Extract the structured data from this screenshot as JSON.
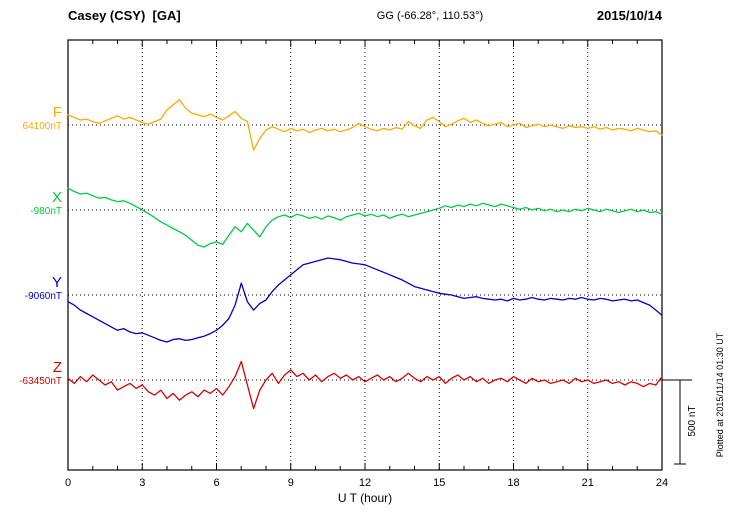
{
  "header": {
    "station": "Casey (CSY)  [GA]",
    "coords": "GG (-66.28°, 110.53°)",
    "date": "2015/10/14"
  },
  "axis": {
    "xlabel": "U T (hour)"
  },
  "side": {
    "scale_label": "500 nT",
    "plotted_at": "Plotted at 2015/11/14 01:30 UT"
  },
  "chart_data": {
    "type": "line",
    "title": "Casey (CSY) [GA] magnetogram 2015/10/14",
    "xlabel": "U T (hour)",
    "ylabel": "",
    "x_range": [
      0,
      24
    ],
    "x_ticks": [
      0,
      3,
      6,
      9,
      12,
      15,
      18,
      21,
      24
    ],
    "x_step_hours": 0.25,
    "scale_bar_nT": 500,
    "grid": "dotted",
    "series": [
      {
        "name": "F",
        "baseline_label": "64100nT",
        "baseline_nT": 64100,
        "color": "#FFAA00",
        "offsets_nT": [
          60,
          45,
          30,
          35,
          20,
          10,
          25,
          40,
          55,
          35,
          45,
          30,
          15,
          5,
          20,
          35,
          90,
          120,
          150,
          100,
          70,
          60,
          50,
          65,
          45,
          30,
          55,
          80,
          40,
          20,
          -150,
          -80,
          -30,
          -10,
          -25,
          -40,
          -20,
          -35,
          -25,
          -45,
          -30,
          -20,
          -35,
          -25,
          -40,
          -30,
          -15,
          10,
          -10,
          -25,
          -35,
          -20,
          -30,
          -15,
          -25,
          20,
          -5,
          -20,
          30,
          45,
          20,
          -10,
          5,
          25,
          40,
          15,
          30,
          10,
          -5,
          5,
          15,
          -10,
          0,
          10,
          -15,
          -5,
          5,
          -10,
          0,
          -10,
          -20,
          -5,
          -15,
          -10,
          -20,
          -10,
          -25,
          -15,
          -30,
          -20,
          -25,
          -35,
          -20,
          -30,
          -40,
          -35,
          -60
        ]
      },
      {
        "name": "X",
        "baseline_label": "-980nT",
        "baseline_nT": -980,
        "color": "#00CC44",
        "offsets_nT": [
          130,
          110,
          95,
          100,
          85,
          70,
          75,
          60,
          50,
          55,
          40,
          20,
          0,
          -20,
          -45,
          -70,
          -90,
          -110,
          -130,
          -150,
          -180,
          -210,
          -220,
          -200,
          -190,
          -205,
          -150,
          -100,
          -130,
          -80,
          -120,
          -160,
          -100,
          -60,
          -40,
          -30,
          -45,
          -25,
          -35,
          -50,
          -40,
          -55,
          -35,
          -45,
          -60,
          -40,
          -30,
          -20,
          -35,
          -25,
          -40,
          -30,
          -50,
          -35,
          -25,
          -40,
          -30,
          -20,
          -10,
          0,
          10,
          25,
          15,
          30,
          20,
          35,
          25,
          40,
          30,
          20,
          35,
          25,
          15,
          5,
          15,
          0,
          10,
          -5,
          5,
          -10,
          0,
          -10,
          5,
          -5,
          10,
          0,
          -10,
          5,
          -5,
          -15,
          -5,
          5,
          -10,
          0,
          -15,
          -10,
          -25
        ]
      },
      {
        "name": "Y",
        "baseline_label": "-9060nT",
        "baseline_nT": -9060,
        "color": "#0000CC",
        "offsets_nT": [
          -40,
          -60,
          -90,
          -110,
          -130,
          -150,
          -170,
          -190,
          -210,
          -200,
          -220,
          -230,
          -225,
          -240,
          -255,
          -270,
          -280,
          -265,
          -260,
          -270,
          -265,
          -255,
          -245,
          -230,
          -210,
          -180,
          -140,
          -60,
          70,
          -40,
          -90,
          -50,
          -30,
          20,
          60,
          90,
          120,
          150,
          180,
          190,
          200,
          210,
          220,
          215,
          210,
          200,
          190,
          185,
          180,
          165,
          150,
          135,
          120,
          105,
          90,
          70,
          50,
          40,
          30,
          20,
          10,
          5,
          0,
          -10,
          -20,
          -15,
          -10,
          -20,
          -25,
          -30,
          -25,
          -35,
          -20,
          -30,
          -25,
          -15,
          -25,
          -30,
          -20,
          -25,
          -30,
          -20,
          -25,
          -15,
          -25,
          -30,
          -20,
          -25,
          -35,
          -30,
          -25,
          -35,
          -30,
          -45,
          -60,
          -90,
          -120
        ]
      },
      {
        "name": "Z",
        "baseline_label": "-63450nT",
        "baseline_nT": -63450,
        "color": "#DD0000",
        "offsets_nT": [
          10,
          -20,
          20,
          -10,
          30,
          0,
          -30,
          -10,
          -60,
          -40,
          -20,
          -50,
          -30,
          -70,
          -90,
          -60,
          -110,
          -80,
          -120,
          -90,
          -70,
          -100,
          -60,
          -80,
          -50,
          -90,
          -40,
          20,
          110,
          -30,
          -170,
          -60,
          0,
          40,
          -20,
          30,
          60,
          20,
          40,
          0,
          30,
          -10,
          20,
          40,
          10,
          30,
          0,
          20,
          -10,
          10,
          30,
          0,
          20,
          -10,
          10,
          40,
          10,
          -10,
          20,
          0,
          20,
          -20,
          10,
          30,
          0,
          20,
          -10,
          10,
          -20,
          0,
          10,
          -10,
          20,
          0,
          -20,
          10,
          -10,
          0,
          -20,
          -10,
          0,
          -20,
          10,
          -10,
          0,
          -20,
          -10,
          0,
          -20,
          -10,
          -30,
          -10,
          -20,
          -40,
          -20,
          -30,
          20
        ]
      }
    ]
  }
}
